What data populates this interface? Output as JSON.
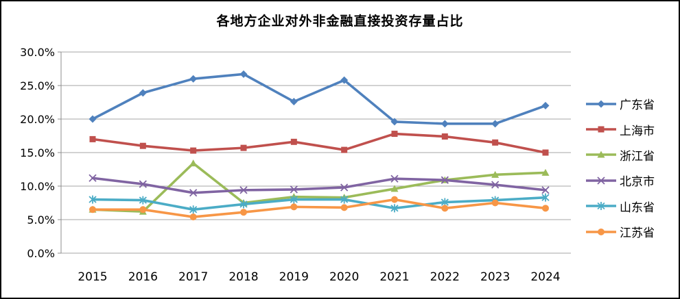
{
  "title": "各地方企业对外非金融直接投资存量占比",
  "chart_data": {
    "type": "line",
    "x": [
      "2015",
      "2016",
      "2017",
      "2018",
      "2019",
      "2020",
      "2021",
      "2022",
      "2023",
      "2024"
    ],
    "series": [
      {
        "name": "广东省",
        "color": "#4F81BD",
        "marker": "diamond",
        "values": [
          20.0,
          23.9,
          26.0,
          26.7,
          22.6,
          25.8,
          19.6,
          19.3,
          19.3,
          22.0
        ]
      },
      {
        "name": "上海市",
        "color": "#C0504D",
        "marker": "square",
        "values": [
          17.0,
          16.0,
          15.3,
          15.7,
          16.6,
          15.4,
          17.8,
          17.4,
          16.5,
          15.0
        ]
      },
      {
        "name": "浙江省",
        "color": "#9BBB59",
        "marker": "triangle",
        "values": [
          6.5,
          6.2,
          13.4,
          7.5,
          8.4,
          8.3,
          9.6,
          10.9,
          11.7,
          12.0
        ]
      },
      {
        "name": "北京市",
        "color": "#8064A2",
        "marker": "x",
        "values": [
          11.2,
          10.3,
          9.0,
          9.4,
          9.5,
          9.8,
          11.1,
          10.9,
          10.2,
          9.4
        ]
      },
      {
        "name": "山东省",
        "color": "#4BACC6",
        "marker": "asterisk",
        "values": [
          8.0,
          7.9,
          6.5,
          7.3,
          8.0,
          8.0,
          6.7,
          7.6,
          7.9,
          8.3
        ]
      },
      {
        "name": "江苏省",
        "color": "#F79646",
        "marker": "circle",
        "values": [
          6.5,
          6.5,
          5.4,
          6.1,
          6.9,
          6.8,
          8.0,
          6.7,
          7.5,
          6.7
        ]
      }
    ],
    "ylim": [
      0,
      30
    ],
    "ytick_step": 5,
    "yticks": [
      "0.0%",
      "5.0%",
      "10.0%",
      "15.0%",
      "20.0%",
      "25.0%",
      "30.0%"
    ],
    "xlabel": "",
    "ylabel": "",
    "grid": true,
    "legend_position": "right",
    "grid_color": "#a6a6a6",
    "axis_color": "#8c8c8c",
    "text_color": "#000000"
  }
}
